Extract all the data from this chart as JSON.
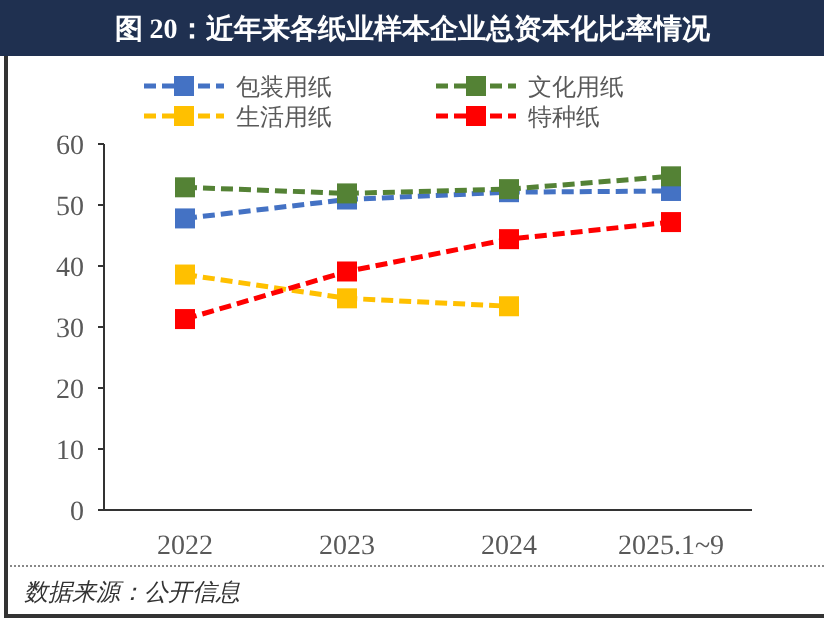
{
  "chart_data": {
    "type": "line",
    "title": "图 20：近年来各纸业样本企业总资本化比率情况",
    "categories": [
      "2022",
      "2023",
      "2024",
      "2025.1~9"
    ],
    "series": [
      {
        "name": "包装用纸",
        "color": "#4472c4",
        "values": [
          47.8,
          50.9,
          52.1,
          52.3
        ]
      },
      {
        "name": "文化用纸",
        "color": "#548235",
        "values": [
          52.9,
          51.9,
          52.6,
          54.7
        ]
      },
      {
        "name": "生活用纸",
        "color": "#ffc000",
        "values": [
          38.6,
          34.7,
          33.4,
          null
        ]
      },
      {
        "name": "特种纸",
        "color": "#ff0000",
        "values": [
          31.3,
          39.1,
          44.4,
          47.2
        ]
      }
    ],
    "ylim": [
      0,
      60
    ],
    "yticks": [
      0,
      10,
      20,
      30,
      40,
      50,
      60
    ],
    "grid": false,
    "legend": "top",
    "marker": "square",
    "line_style": "dashed",
    "annotations": [
      "数据来源：公开信息"
    ]
  }
}
